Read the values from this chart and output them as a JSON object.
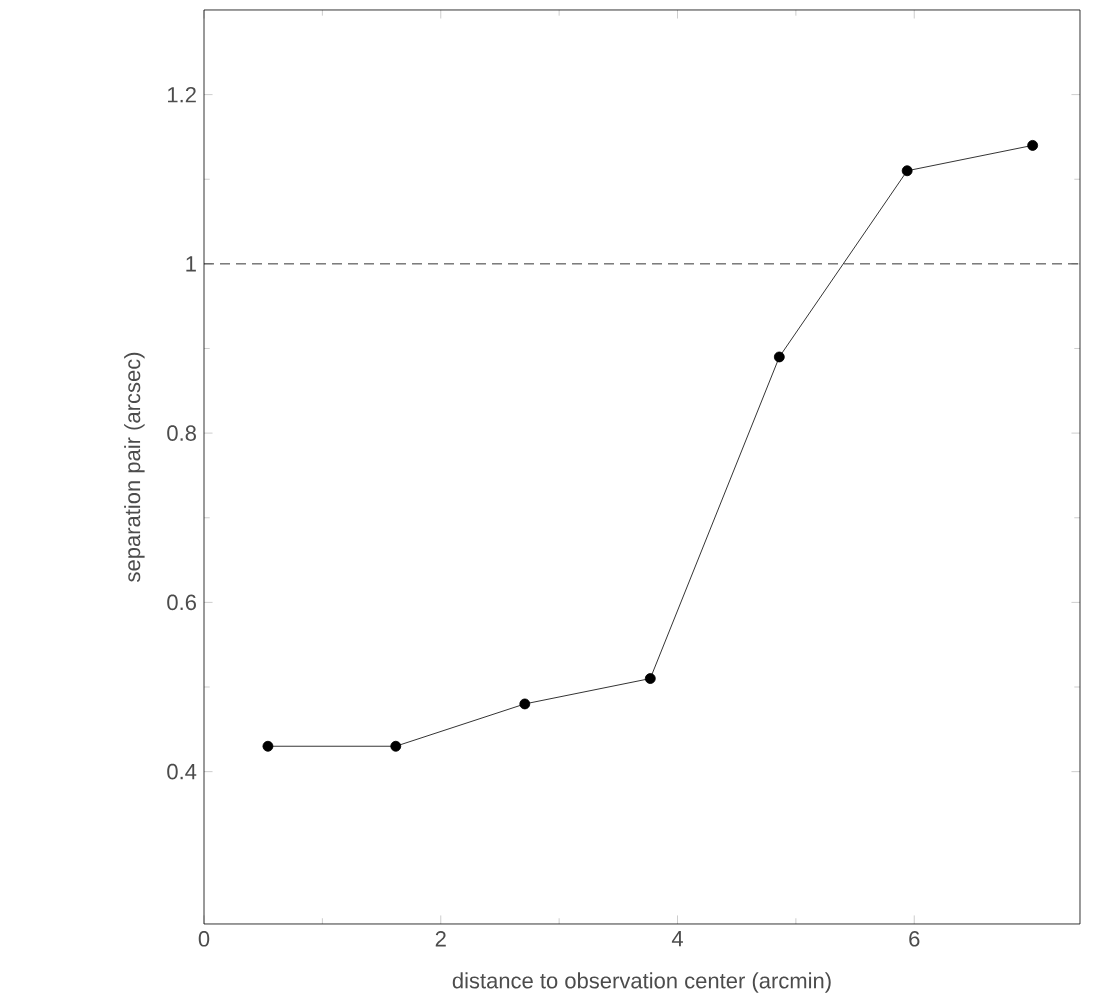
{
  "chart_data": {
    "type": "line",
    "xlabel": "distance to observation center (arcmin)",
    "ylabel": "separation pair (arcsec)",
    "x": [
      0.54,
      1.62,
      2.71,
      3.77,
      4.86,
      5.94,
      7.0
    ],
    "values": [
      0.43,
      0.43,
      0.48,
      0.51,
      0.89,
      1.11,
      1.14
    ],
    "color": "#000000",
    "marker": "circle",
    "line_style": "solid",
    "xlim": [
      0,
      7.4
    ],
    "ylim": [
      0.22,
      1.3
    ],
    "xticks": [
      0,
      2,
      4,
      6
    ],
    "yticks": [
      0.4,
      0.6,
      0.8,
      1,
      1.2
    ],
    "ref_lines": [
      {
        "axis": "y",
        "value": 1,
        "line_style": "dashed",
        "color": "#000000"
      }
    ]
  }
}
